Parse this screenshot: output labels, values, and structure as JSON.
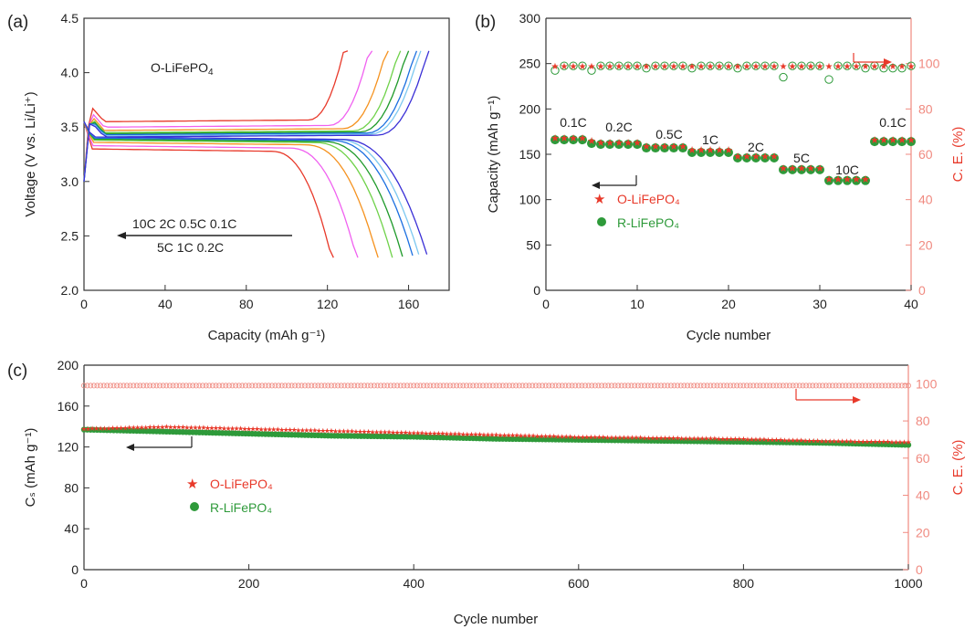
{
  "colors": {
    "red": "#e8392a",
    "green": "#2e9a3a",
    "axis_red": "#f08a80",
    "black": "#222222",
    "curve_colors": [
      "#e8392a",
      "#f060f0",
      "#f5921f",
      "#6fd24a",
      "#1f9a2a",
      "#1b6fe0",
      "#7cc8f0",
      "#3a2fd6"
    ]
  },
  "chart_data": [
    {
      "panel": "(a)",
      "type": "line",
      "title": "O-LiFePO4",
      "xlabel": "Capacity (mAh g⁻¹)",
      "ylabel": "Voltage (V vs. Li/Li⁺)",
      "xlim": [
        0,
        180
      ],
      "ylim": [
        2.0,
        4.5
      ],
      "xticks": [
        "0",
        "40",
        "80",
        "120",
        "160"
      ],
      "yticks": [
        "2.0",
        "2.5",
        "3.0",
        "3.5",
        "4.0",
        "4.5"
      ],
      "annotation_top": "10C  2C  0.5C  0.1C",
      "annotation_bottom": "5C  1C  0.2C",
      "series": [
        {
          "rate": "10C",
          "color_index": 0,
          "charge_plateau": 3.55,
          "discharge_plateau": 3.3,
          "charge_end": 130,
          "discharge_end": 123
        },
        {
          "rate": "5C",
          "color_index": 1,
          "charge_plateau": 3.5,
          "discharge_plateau": 3.33,
          "charge_end": 142,
          "discharge_end": 135
        },
        {
          "rate": "2C",
          "color_index": 2,
          "charge_plateau": 3.47,
          "discharge_plateau": 3.36,
          "charge_end": 150,
          "discharge_end": 145
        },
        {
          "rate": "1C",
          "color_index": 3,
          "charge_plateau": 3.45,
          "discharge_plateau": 3.38,
          "charge_end": 156,
          "discharge_end": 152
        },
        {
          "rate": "0.5C",
          "color_index": 4,
          "charge_plateau": 3.44,
          "discharge_plateau": 3.39,
          "charge_end": 160,
          "discharge_end": 157
        },
        {
          "rate": "0.2C",
          "color_index": 5,
          "charge_plateau": 3.43,
          "discharge_plateau": 3.4,
          "charge_end": 164,
          "discharge_end": 162
        },
        {
          "rate": "0.1C",
          "color_index": 6,
          "charge_plateau": 3.42,
          "discharge_plateau": 3.41,
          "charge_end": 166,
          "discharge_end": 165
        },
        {
          "rate": "0.1C",
          "color_index": 7,
          "charge_plateau": 3.41,
          "discharge_plateau": 3.41,
          "charge_end": 170,
          "discharge_end": 169
        }
      ]
    },
    {
      "panel": "(b)",
      "type": "scatter",
      "xlabel": "Cycle number",
      "ylabel": "Capacity (mAh g⁻¹)",
      "ylabel_right": "C. E. (%)",
      "xlim": [
        0,
        40
      ],
      "ylim": [
        0,
        300
      ],
      "ylim_right": [
        0,
        120
      ],
      "xticks": [
        "0",
        "10",
        "20",
        "30",
        "40"
      ],
      "yticks": [
        "0",
        "50",
        "100",
        "150",
        "200",
        "250",
        "300"
      ],
      "yticks_right": [
        "0",
        "20",
        "40",
        "60",
        "80",
        "100"
      ],
      "legend": [
        "O-LiFePO₄",
        "R-LiFePO₄"
      ],
      "rate_labels": [
        {
          "label": "0.1C",
          "x": 3,
          "y": 180
        },
        {
          "label": "0.2C",
          "x": 8,
          "y": 175
        },
        {
          "label": "0.5C",
          "x": 13.5,
          "y": 167
        },
        {
          "label": "1C",
          "x": 18,
          "y": 161
        },
        {
          "label": "2C",
          "x": 23,
          "y": 153
        },
        {
          "label": "5C",
          "x": 28,
          "y": 141
        },
        {
          "label": "10C",
          "x": 33,
          "y": 128
        },
        {
          "label": "0.1C",
          "x": 38,
          "y": 180
        }
      ],
      "x": [
        1,
        2,
        3,
        4,
        5,
        6,
        7,
        8,
        9,
        10,
        11,
        12,
        13,
        14,
        15,
        16,
        17,
        18,
        19,
        20,
        21,
        22,
        23,
        24,
        25,
        26,
        27,
        28,
        29,
        30,
        31,
        32,
        33,
        34,
        35,
        36,
        37,
        38,
        39,
        40
      ],
      "series": [
        {
          "name": "O-LiFePO₄",
          "values": [
            168,
            168,
            168,
            168,
            165,
            163,
            163,
            163,
            163,
            163,
            159,
            159,
            159,
            159,
            159,
            155,
            155,
            155,
            155,
            155,
            148,
            148,
            148,
            148,
            148,
            135,
            135,
            135,
            135,
            135,
            123,
            123,
            123,
            123,
            123,
            166,
            166,
            166,
            166,
            166
          ]
        },
        {
          "name": "R-LiFePO₄",
          "values": [
            166,
            166,
            166,
            166,
            162,
            161,
            161,
            161,
            161,
            161,
            157,
            157,
            157,
            157,
            157,
            152,
            152,
            152,
            152,
            152,
            146,
            146,
            146,
            146,
            146,
            133,
            133,
            133,
            133,
            133,
            121,
            121,
            121,
            121,
            121,
            164,
            164,
            164,
            164,
            164
          ]
        },
        {
          "name": "C. E. O",
          "axis": "right",
          "values": [
            99,
            99,
            99,
            99,
            99,
            99,
            99,
            99,
            99,
            99,
            99,
            99,
            99,
            99,
            99,
            99,
            99,
            99,
            99,
            99,
            99,
            99,
            99,
            99,
            99,
            99,
            99,
            99,
            99,
            99,
            99,
            99,
            99,
            99,
            99,
            99,
            99,
            99,
            99,
            99
          ]
        },
        {
          "name": "C. E. R",
          "axis": "right",
          "values": [
            97,
            99,
            99,
            99,
            97,
            99,
            99,
            99,
            99,
            99,
            98,
            99,
            99,
            99,
            99,
            98,
            99,
            99,
            99,
            99,
            98,
            99,
            99,
            99,
            99,
            94,
            99,
            99,
            99,
            99,
            93,
            99,
            99,
            99,
            98,
            99,
            98,
            98,
            98,
            99
          ]
        }
      ]
    },
    {
      "panel": "(c)",
      "type": "scatter",
      "xlabel": "Cycle number",
      "ylabel": "Cₛ (mAh g⁻¹)",
      "ylabel_right": "C. E. (%)",
      "xlim": [
        0,
        1000
      ],
      "ylim": [
        0,
        200
      ],
      "ylim_right": [
        0,
        110
      ],
      "xticks": [
        "0",
        "200",
        "400",
        "600",
        "800",
        "1000"
      ],
      "yticks": [
        "0",
        "40",
        "80",
        "120",
        "160",
        "200"
      ],
      "yticks_right": [
        "0",
        "20",
        "40",
        "60",
        "80",
        "100"
      ],
      "legend": [
        "O-LiFePO₄",
        "R-LiFePO₄"
      ],
      "x": [
        0,
        100,
        200,
        300,
        400,
        500,
        600,
        700,
        800,
        900,
        1000
      ],
      "series": [
        {
          "name": "O-LiFePO₄",
          "values": [
            138,
            140,
            138,
            136,
            134,
            132,
            130,
            129,
            128,
            126,
            125
          ]
        },
        {
          "name": "R-LiFePO₄",
          "values": [
            137,
            135,
            133,
            131,
            130,
            128,
            127,
            126,
            125,
            124,
            122
          ]
        },
        {
          "name": "C. E.",
          "axis": "right",
          "values": [
            99,
            99,
            99,
            99,
            99,
            99,
            99,
            99,
            99,
            99,
            99
          ]
        }
      ]
    }
  ]
}
